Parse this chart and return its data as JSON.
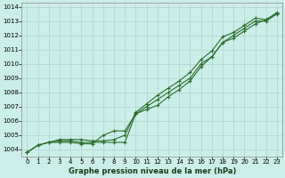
{
  "background_color": "#cceee8",
  "grid_color": "#aacccc",
  "line_color": "#2d6e2d",
  "xlabel": "Graphe pression niveau de la mer (hPa)",
  "ylabel_ticks": [
    1004,
    1005,
    1006,
    1007,
    1008,
    1009,
    1010,
    1011,
    1012,
    1013,
    1014
  ],
  "xlim": [
    -0.5,
    23.5
  ],
  "ylim": [
    1003.5,
    1014.3
  ],
  "x_ticks": [
    0,
    1,
    2,
    3,
    4,
    5,
    6,
    7,
    8,
    9,
    10,
    11,
    12,
    13,
    14,
    15,
    16,
    17,
    18,
    19,
    20,
    21,
    22,
    23
  ],
  "series1": [
    1003.8,
    1004.3,
    1004.5,
    1004.6,
    1004.6,
    1004.5,
    1004.5,
    1004.5,
    1004.5,
    1004.5,
    1006.5,
    1007.0,
    1007.5,
    1008.0,
    1008.5,
    1009.0,
    1010.0,
    1010.5,
    1011.5,
    1012.0,
    1012.5,
    1013.0,
    1013.0,
    1013.5
  ],
  "series2": [
    1003.8,
    1004.3,
    1004.5,
    1004.7,
    1004.7,
    1004.7,
    1004.6,
    1004.6,
    1004.7,
    1005.0,
    1006.6,
    1007.2,
    1007.8,
    1008.3,
    1008.8,
    1009.4,
    1010.3,
    1010.9,
    1011.9,
    1012.2,
    1012.7,
    1013.2,
    1013.1,
    1013.55
  ],
  "series3": [
    1003.8,
    1004.3,
    1004.5,
    1004.5,
    1004.5,
    1004.4,
    1004.4,
    1005.0,
    1005.3,
    1005.3,
    1006.5,
    1006.8,
    1007.1,
    1007.7,
    1008.2,
    1008.8,
    1009.8,
    1010.5,
    1011.5,
    1011.8,
    1012.3,
    1012.8,
    1013.1,
    1013.6
  ],
  "tick_fontsize": 5,
  "xlabel_fontsize": 6,
  "xlabel_fontweight": "bold",
  "xlabel_color": "#1a3a1a"
}
